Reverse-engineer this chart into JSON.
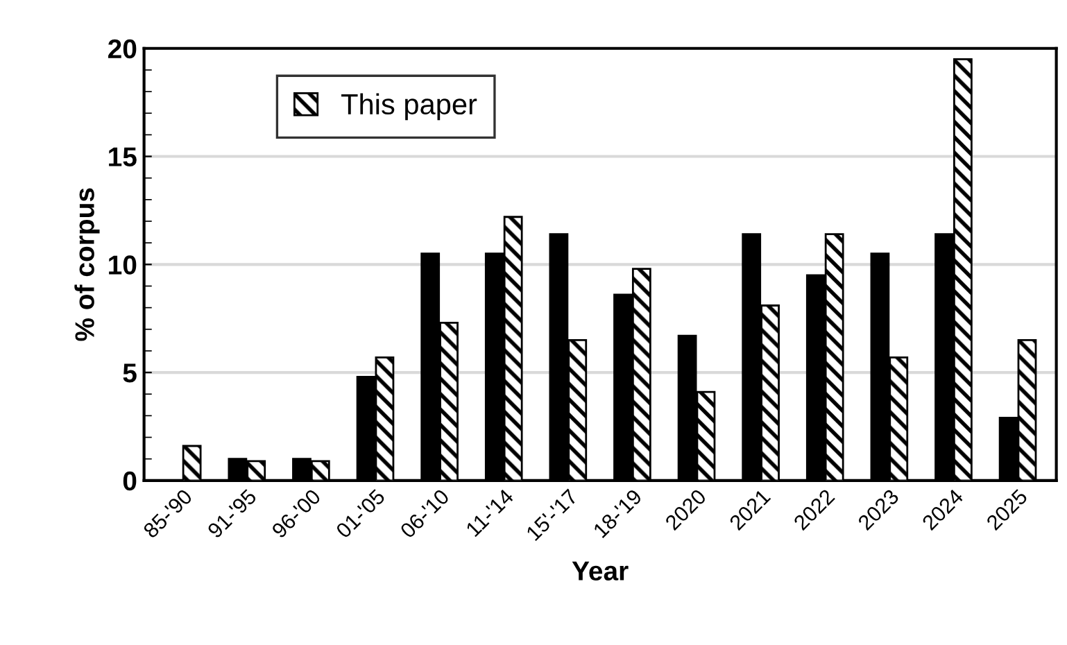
{
  "chart_data": {
    "type": "bar",
    "xlabel": "Year",
    "ylabel": "% of corpus",
    "categories": [
      "85-'90",
      "91-'95",
      "96-'00",
      "01-'05",
      "06-'10",
      "11-'14",
      "15'-'17",
      "18-'19",
      "2020",
      "2021",
      "2022",
      "2023",
      "2024",
      "2025"
    ],
    "series": [
      {
        "color": "#000000",
        "values": [
          0,
          1.0,
          1.0,
          4.8,
          10.5,
          10.5,
          11.4,
          8.6,
          6.7,
          11.4,
          9.5,
          10.5,
          11.4,
          2.9
        ]
      },
      {
        "name": "This paper",
        "color": "#000000",
        "values": [
          1.6,
          0.9,
          0.9,
          5.7,
          7.3,
          12.2,
          6.5,
          9.8,
          4.1,
          8.1,
          11.4,
          5.7,
          19.5,
          6.5
        ]
      }
    ],
    "ylim": [
      0,
      20
    ],
    "yticks": [
      0,
      5,
      10,
      15,
      20
    ],
    "grid": "y",
    "legend": "top left"
  }
}
